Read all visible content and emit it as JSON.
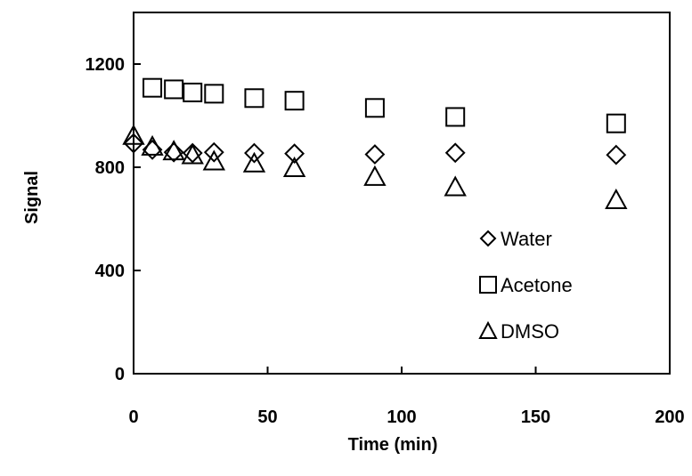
{
  "chart_data": {
    "type": "scatter",
    "title": "",
    "xlabel": "Time (min)",
    "ylabel": "Signal",
    "xlim": [
      0,
      200
    ],
    "ylim": [
      0,
      1400
    ],
    "xticks": [
      "0",
      "50",
      "100",
      "150",
      "200"
    ],
    "yticks": [
      "0",
      "400",
      "800",
      "1200"
    ],
    "grid": false,
    "legend_position": "bottom-right",
    "series": [
      {
        "name": "Water",
        "marker": "diamond",
        "x": [
          0,
          7,
          15,
          22,
          30,
          45,
          60,
          90,
          120,
          180
        ],
        "y": [
          893,
          868,
          858,
          855,
          858,
          855,
          853,
          850,
          856,
          848
        ]
      },
      {
        "name": "Acetone",
        "marker": "square",
        "x": [
          7,
          15,
          22,
          30,
          45,
          60,
          90,
          120,
          180
        ],
        "y": [
          1108,
          1102,
          1090,
          1085,
          1068,
          1058,
          1030,
          995,
          970
        ]
      },
      {
        "name": "DMSO",
        "marker": "triangle",
        "x": [
          0,
          7,
          15,
          22,
          30,
          45,
          60,
          90,
          120,
          180
        ],
        "y": [
          925,
          883,
          865,
          850,
          826,
          818,
          800,
          766,
          726,
          676
        ]
      }
    ]
  }
}
